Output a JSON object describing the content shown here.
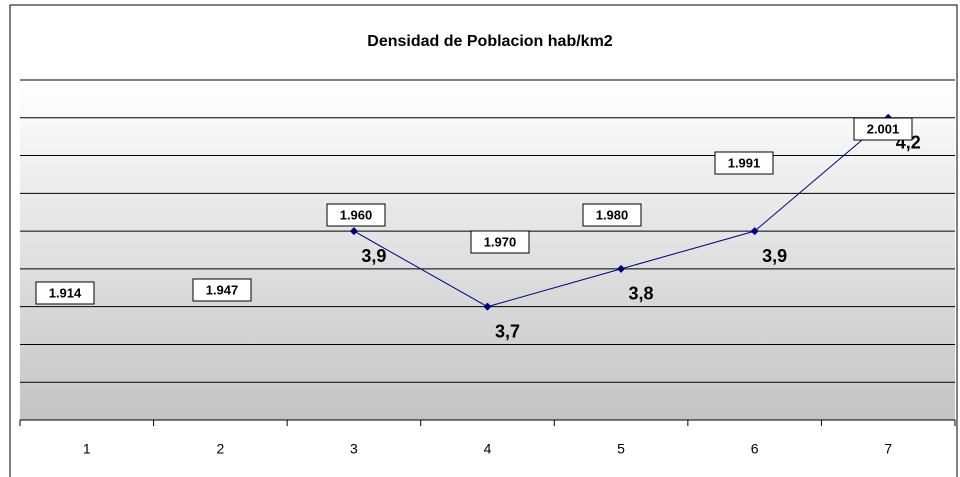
{
  "chart_data": {
    "type": "line",
    "title": "Densidad de Poblacion hab/km2",
    "categories": [
      "1",
      "2",
      "3",
      "4",
      "5",
      "6",
      "7"
    ],
    "series": [
      {
        "name": "Densidad",
        "color": "#000080",
        "values": [
          null,
          null,
          3.9,
          3.7,
          3.8,
          3.9,
          4.2
        ],
        "value_labels": [
          null,
          null,
          "3,9",
          "3,7",
          "3,8",
          "3,9",
          "4,2"
        ]
      }
    ],
    "point_labels": [
      "1.914",
      "1.947",
      "1.960",
      "1.970",
      "1.980",
      "1.991",
      "2.001"
    ],
    "ylim": [
      3.4,
      4.3
    ],
    "yticks": [
      3.4,
      3.5,
      3.6,
      3.7,
      3.8,
      3.9,
      4.0,
      4.1,
      4.2,
      4.3
    ],
    "grid": true
  }
}
